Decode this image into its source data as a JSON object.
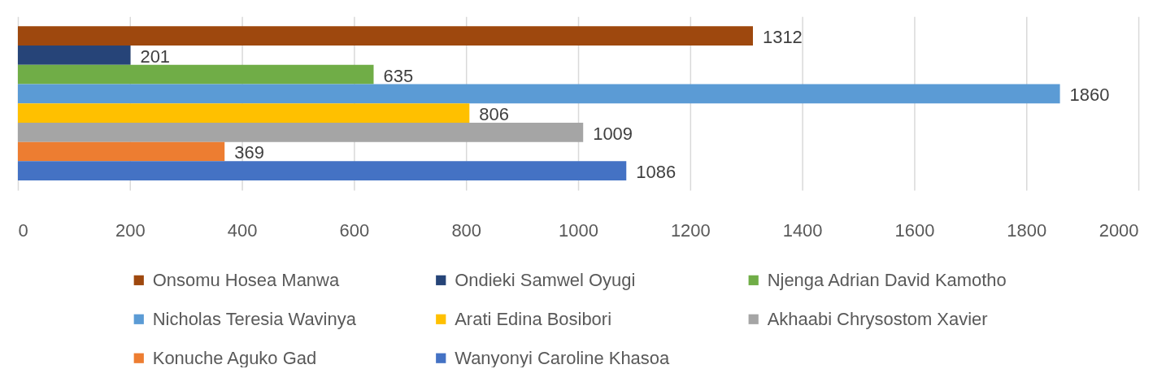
{
  "chart_data": {
    "type": "bar",
    "orientation": "horizontal",
    "categories": [
      null
    ],
    "series": [
      {
        "name": "Onsomu Hosea Manwa",
        "color": "#9e480e",
        "values": [
          1312
        ]
      },
      {
        "name": "Ondieki Samwel Oyugi",
        "color": "#264478",
        "values": [
          201
        ]
      },
      {
        "name": "Njenga Adrian David Kamotho",
        "color": "#70ad47",
        "values": [
          635
        ]
      },
      {
        "name": "Nicholas Teresia Wavinya",
        "color": "#5b9bd5",
        "values": [
          1860
        ]
      },
      {
        "name": "Arati Edina Bosibori",
        "color": "#ffc000",
        "values": [
          806
        ]
      },
      {
        "name": "Akhaabi Chrysostom Xavier",
        "color": "#a5a5a5",
        "values": [
          1009
        ]
      },
      {
        "name": "Konuche Aguko Gad",
        "color": "#ed7d31",
        "values": [
          369
        ]
      },
      {
        "name": "Wanyonyi Caroline Khasoa",
        "color": "#4472c4",
        "values": [
          1086
        ]
      }
    ],
    "xlim": [
      0,
      2000
    ],
    "xticks": [
      0,
      200,
      400,
      600,
      800,
      1000,
      1200,
      1400,
      1600,
      1800,
      2000
    ],
    "grid": "x",
    "legend": "bottom",
    "data_labels": true
  }
}
